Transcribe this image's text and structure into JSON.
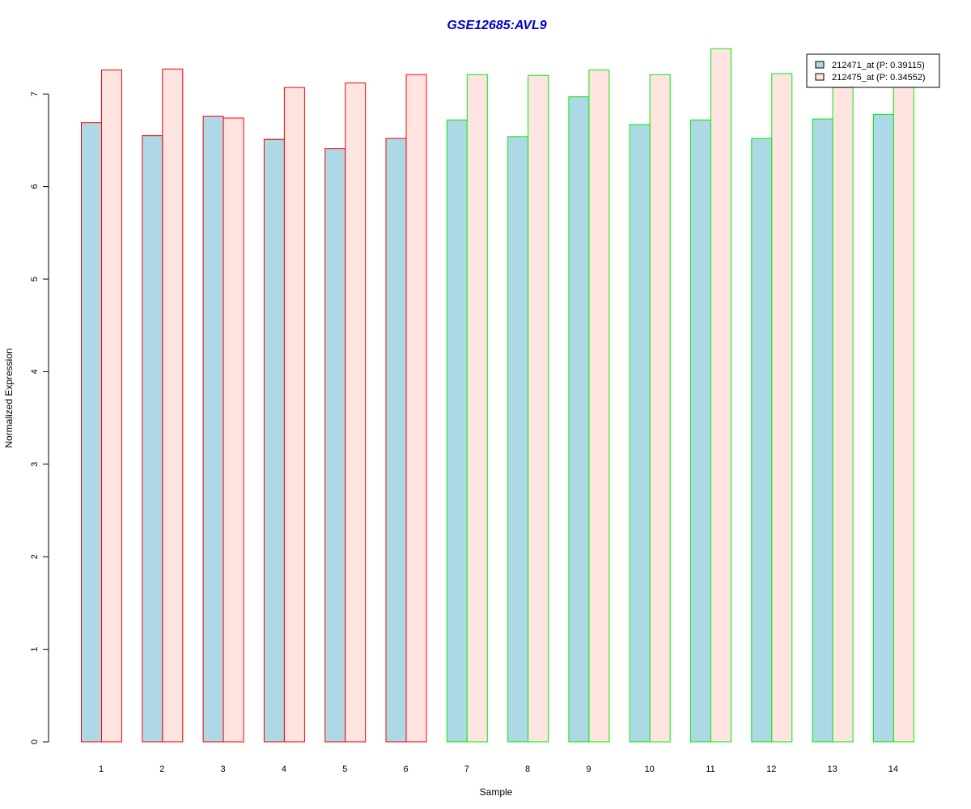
{
  "colors": {
    "title": "#0000cc",
    "series1_fill": "#add8e6",
    "series2_fill": "#ffe4e1",
    "group_border_1": "#ff0000",
    "group_border_2": "#00ee00",
    "axis": "#000000"
  },
  "chart_data": {
    "type": "bar",
    "title": "GSE12685:AVL9",
    "xlabel": "Sample",
    "ylabel": "Normalized Expression",
    "categories": [
      "1",
      "2",
      "3",
      "4",
      "5",
      "6",
      "7",
      "8",
      "9",
      "10",
      "11",
      "12",
      "13",
      "14"
    ],
    "ylim": [
      0,
      7.5
    ],
    "yticks": [
      0,
      1,
      2,
      3,
      4,
      5,
      6,
      7
    ],
    "grid": false,
    "legend_position": "top-right",
    "series": [
      {
        "name": "212471_at (P: 0.39115)",
        "values": [
          6.69,
          6.55,
          6.76,
          6.51,
          6.41,
          6.52,
          6.72,
          6.54,
          6.97,
          6.67,
          6.72,
          6.52,
          6.73,
          6.78
        ]
      },
      {
        "name": "212475_at (P: 0.34552)",
        "values": [
          7.26,
          7.27,
          6.74,
          7.07,
          7.12,
          7.21,
          7.21,
          7.2,
          7.26,
          7.21,
          7.49,
          7.22,
          7.07,
          7.08
        ]
      }
    ],
    "sample_groups": [
      1,
      1,
      1,
      1,
      1,
      1,
      2,
      2,
      2,
      2,
      2,
      2,
      2,
      2
    ]
  }
}
